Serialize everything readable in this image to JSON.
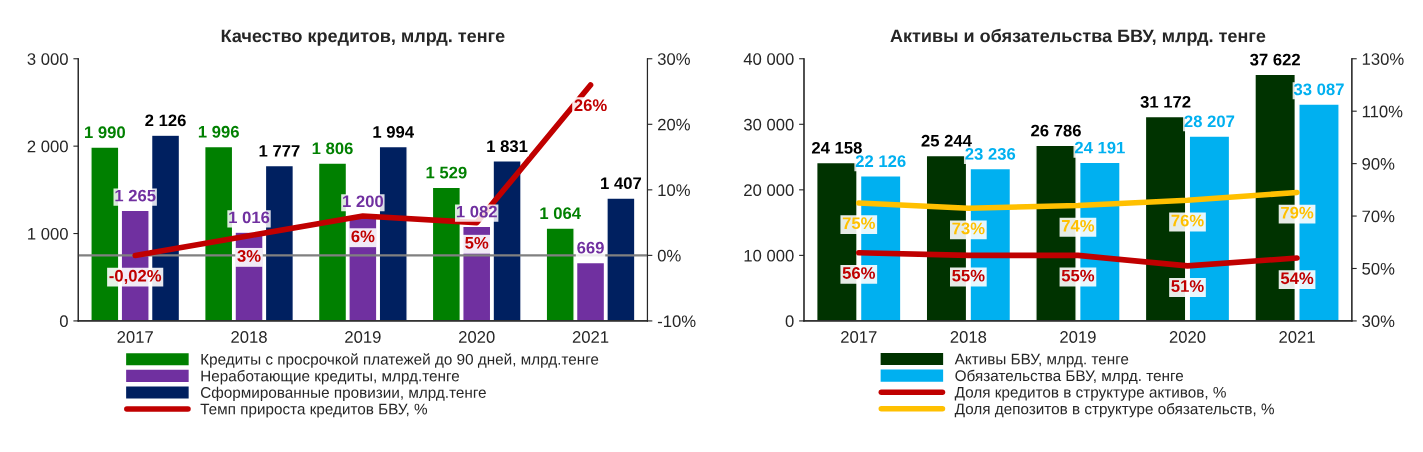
{
  "chart_data": [
    {
      "type": "bar",
      "title": "Качество кредитов, млрд. тенге",
      "categories": [
        "2017",
        "2018",
        "2019",
        "2020",
        "2021"
      ],
      "series": [
        {
          "name": "Кредиты с просрочкой платежей до 90 дней, млрд.тенге",
          "color": "#008000",
          "values": [
            1990,
            1996,
            1806,
            1529,
            1064
          ],
          "value_labels": [
            "1 990",
            "1 996",
            "1 806",
            "1 529",
            "1 064"
          ]
        },
        {
          "name": "Неработающие кредиты, млрд.тенге",
          "color": "#7030a0",
          "values": [
            1265,
            1016,
            1200,
            1082,
            669
          ],
          "value_labels": [
            "1 265",
            "1 016",
            "1 200",
            "1 082",
            "669"
          ]
        },
        {
          "name": "Сформированные провизии, млрд.тенге",
          "color": "#002060",
          "values": [
            2126,
            1777,
            1994,
            1831,
            1407
          ],
          "value_labels": [
            "2 126",
            "1 777",
            "1 994",
            "1 831",
            "1 407"
          ]
        },
        {
          "name": "Темп прироста кредитов БВУ, %",
          "type": "line",
          "axis": "y2",
          "color": "#c00000",
          "values": [
            -0.02,
            3,
            6,
            5,
            26
          ],
          "value_labels": [
            "-0,02%",
            "3%",
            "6%",
            "5%",
            "26%"
          ]
        }
      ],
      "ylim": [
        0,
        3000
      ],
      "yticks": [
        {
          "value": 0,
          "label": "0"
        },
        {
          "value": 1000,
          "label": "1 000"
        },
        {
          "value": 2000,
          "label": "2 000"
        },
        {
          "value": 3000,
          "label": "3 000"
        }
      ],
      "y2lim": [
        -10,
        30
      ],
      "y2ticks": [
        {
          "value": -10,
          "label": "-10%"
        },
        {
          "value": 0,
          "label": "0%"
        },
        {
          "value": 10,
          "label": "10%"
        },
        {
          "value": 20,
          "label": "20%"
        },
        {
          "value": 30,
          "label": "30%"
        }
      ],
      "ref_lines": [
        {
          "axis": "y2",
          "value": 0,
          "color": "#808080"
        }
      ],
      "legend": "bottom",
      "marker": "none",
      "line_style": "solid"
    },
    {
      "type": "bar",
      "title": "Активы и обязательства БВУ, млрд. тенге",
      "categories": [
        "2017",
        "2018",
        "2019",
        "2020",
        "2021"
      ],
      "series": [
        {
          "name": "Активы БВУ, млрд. тенге",
          "color": "#003300",
          "values": [
            24158,
            25244,
            26786,
            31172,
            37622
          ],
          "value_labels": [
            "24 158",
            "25 244",
            "26 786",
            "31 172",
            "37 622"
          ]
        },
        {
          "name": "Обязательства БВУ, млрд. тенге",
          "color": "#00b0f0",
          "values": [
            22126,
            23236,
            24191,
            28207,
            33087
          ],
          "value_labels": [
            "22 126",
            "23 236",
            "24 191",
            "28 207",
            "33 087"
          ]
        },
        {
          "name": "Доля кредитов в структуре активов, %",
          "type": "line",
          "axis": "y2",
          "color": "#c00000",
          "values": [
            56,
            55,
            55,
            51,
            54
          ],
          "value_labels": [
            "56%",
            "55%",
            "55%",
            "51%",
            "54%"
          ]
        },
        {
          "name": "Доля депозитов в структуре обязательств, %",
          "type": "line",
          "axis": "y2",
          "color": "#ffc000",
          "values": [
            75,
            73,
            74,
            76,
            79
          ],
          "value_labels": [
            "75%",
            "73%",
            "74%",
            "76%",
            "79%"
          ]
        }
      ],
      "ylim": [
        0,
        40000
      ],
      "yticks": [
        {
          "value": 0,
          "label": "0"
        },
        {
          "value": 10000,
          "label": "10 000"
        },
        {
          "value": 20000,
          "label": "20 000"
        },
        {
          "value": 30000,
          "label": "30 000"
        },
        {
          "value": 40000,
          "label": "40 000"
        }
      ],
      "y2lim": [
        30,
        130
      ],
      "y2ticks": [
        {
          "value": 30,
          "label": "30%"
        },
        {
          "value": 50,
          "label": "50%"
        },
        {
          "value": 70,
          "label": "70%"
        },
        {
          "value": 90,
          "label": "90%"
        },
        {
          "value": 110,
          "label": "110%"
        },
        {
          "value": 130,
          "label": "130%"
        }
      ],
      "legend": "bottom",
      "marker": "none",
      "line_style": "solid"
    }
  ]
}
